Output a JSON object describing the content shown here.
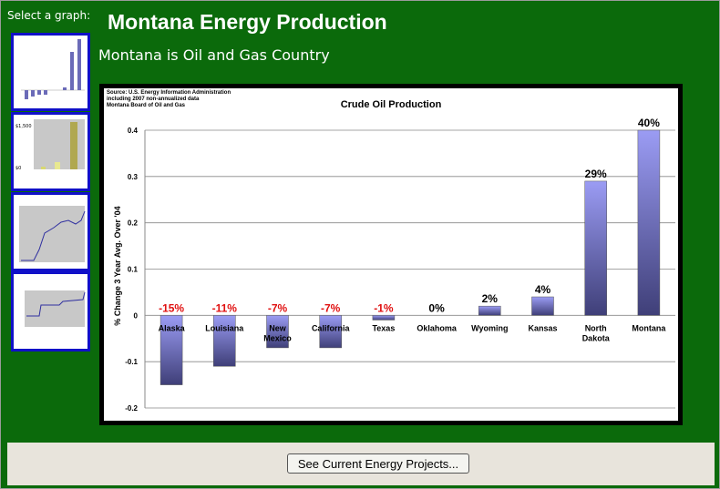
{
  "sidebar": {
    "label": "Select a graph:",
    "thumbnails": [
      "crude-oil-production",
      "energy-bar-chart",
      "line-chart",
      "line-chart-2"
    ]
  },
  "header": {
    "title": "Montana Energy Production",
    "subtitle": "Montana is Oil and Gas Country"
  },
  "chart_data": {
    "type": "bar",
    "title": "Crude Oil Production",
    "source_notes": [
      "Source: U.S. Energy Information Administration",
      "including 2007 non-annualized data",
      "Montana Board of Oil and Gas"
    ],
    "ylabel": "% Change 3 Year Avg. Over '04",
    "xlabel": "",
    "ylim": [
      -0.2,
      0.4
    ],
    "yticks": [
      "0.4",
      "0.3",
      "0.2",
      "0.1",
      "0",
      "-0.1",
      "-0.2"
    ],
    "grid": true,
    "categories": [
      "Alaska",
      "Louisiana",
      "New Mexico",
      "California",
      "Texas",
      "Oklahoma",
      "Wyoming",
      "Kansas",
      "North Dakota",
      "Montana"
    ],
    "values": [
      -0.15,
      -0.11,
      -0.07,
      -0.07,
      -0.01,
      0,
      0.02,
      0.04,
      0.29,
      0.4
    ],
    "data_labels": [
      "-15%",
      "-11%",
      "-7%",
      "-7%",
      "-1%",
      "0%",
      "2%",
      "4%",
      "29%",
      "40%"
    ],
    "colors": {
      "bar_top": "#9b9cf4",
      "bar_bottom": "#3f3f78",
      "negative_label": "#e01010",
      "positive_label": "#000000"
    }
  },
  "footer": {
    "button_label": "See Current Energy Projects..."
  }
}
